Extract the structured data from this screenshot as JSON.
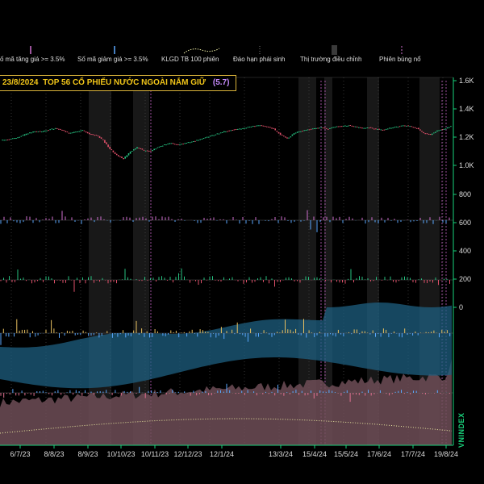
{
  "legend": [
    {
      "id": "up",
      "label": "ố mã tăng giá >= 3.5%",
      "color": "#d070d0"
    },
    {
      "id": "down",
      "label": "Số mã giảm giá >= 3.5%",
      "color": "#5aa8ff"
    },
    {
      "id": "klgd",
      "label": "KLGD TB 100 phiên",
      "color": "#e8e8a0"
    },
    {
      "id": "expiry",
      "label": "Đáo hạn phái sinh",
      "color": "#7a7a7a"
    },
    {
      "id": "correct",
      "label": "Thị trường điều chỉnh",
      "color": "#3a3a3a"
    },
    {
      "id": "burst",
      "label": "Phiên bùng nổ",
      "color": "#d070d0"
    }
  ],
  "title": {
    "date": "23/8/2024",
    "text": "TOP 56  CỔ PHIẾU NƯỚC NGOÀI NẮM GIỮ",
    "value": "(5.7)"
  },
  "side_label": "VNINDEX",
  "colors": {
    "up": "#26c281",
    "down": "#e0506a",
    "axis": "#19d27c",
    "band": "#1d5f80",
    "volume": "#6e4d57"
  },
  "chart_data": {
    "type": "line",
    "x_ticks": [
      "6/7/23",
      "8/8/23",
      "8/9/23",
      "10/10/23",
      "10/11/23",
      "12/12/23",
      "12/1/24",
      "13/3/24",
      "15/4/24",
      "15/5/24",
      "17/6/24",
      "17/7/24",
      "19/8/24"
    ],
    "y_ticks": [
      "1.6K",
      "1.4K",
      "1.2K",
      "1.0K",
      "800",
      "600",
      "400",
      "200",
      "0"
    ],
    "series": [
      {
        "values": [
          1180,
          1185,
          1195,
          1210,
          1230,
          1245,
          1240,
          1255,
          1265,
          1250,
          1230,
          1240,
          1250,
          1225,
          1215,
          1180,
          1120,
          1075,
          1050,
          1100,
          1130,
          1110,
          1105,
          1130,
          1150,
          1160,
          1150,
          1160,
          1170,
          1185,
          1200,
          1215,
          1230,
          1245,
          1255,
          1260,
          1270,
          1280,
          1285,
          1275,
          1260,
          1220,
          1190,
          1230,
          1245,
          1255,
          1265,
          1270,
          1260,
          1275,
          1280,
          1285,
          1275,
          1265,
          1270,
          1260,
          1255,
          1265,
          1275,
          1285,
          1280,
          1265,
          1230,
          1220,
          1250,
          1260,
          1280
        ]
      }
    ],
    "ylim": [
      0,
      1600
    ],
    "grid": false,
    "legend_position": "top"
  }
}
